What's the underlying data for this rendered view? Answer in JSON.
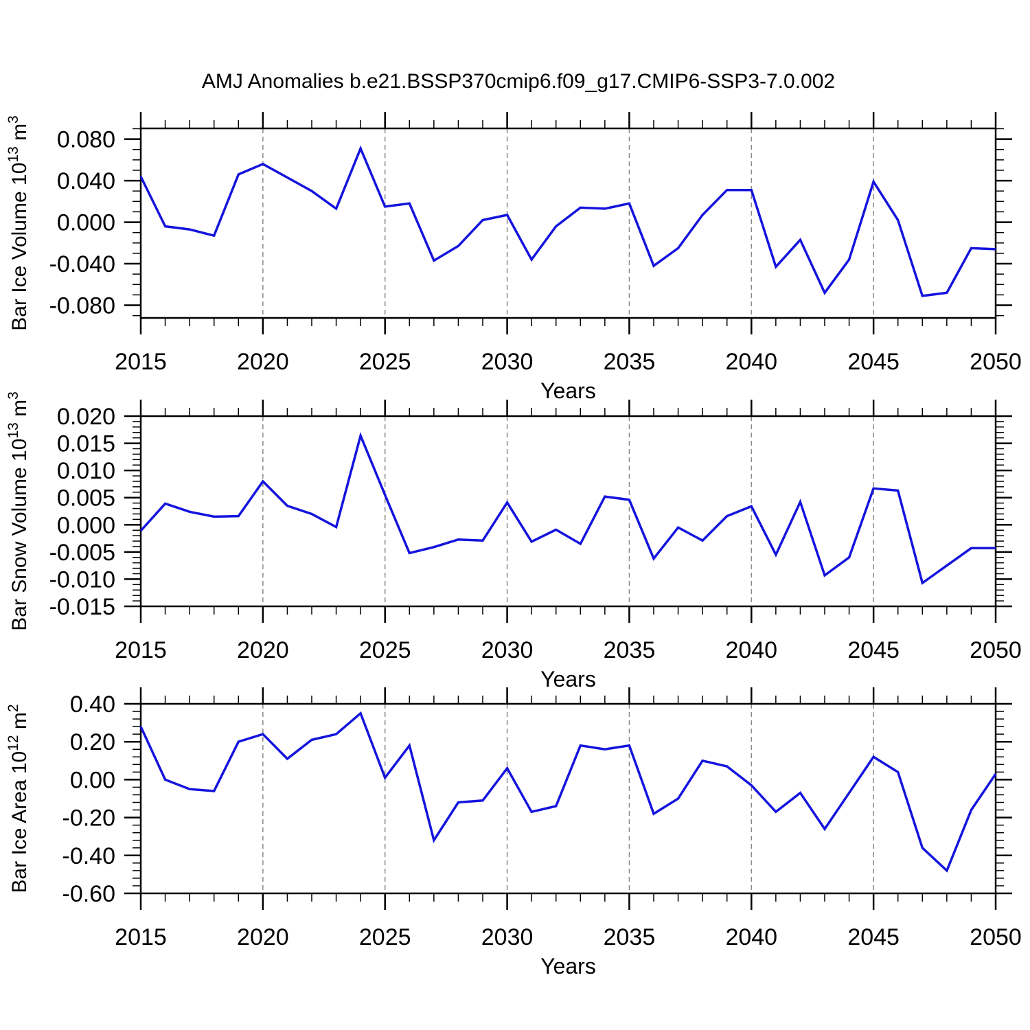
{
  "title": "AMJ Anomalies b.e21.BSSP370cmip6.f09_g17.CMIP6-SSP3-7.0.002",
  "line_color": "#1414dd",
  "grid_color": "#8a8a8a",
  "axis_color": "#000000",
  "chart_data": [
    {
      "type": "line",
      "name": "bar-ice-volume",
      "ylabel": "Bar Ice Volume 10^13 m^3",
      "ylabel_parts": [
        {
          "t": "Bar Ice Volume 10"
        },
        {
          "t": "13",
          "sup": true
        },
        {
          "t": " m"
        },
        {
          "t": "3",
          "sup": true
        }
      ],
      "xlabel": "Years",
      "x": [
        2015,
        2016,
        2017,
        2018,
        2019,
        2020,
        2021,
        2022,
        2023,
        2024,
        2025,
        2026,
        2027,
        2028,
        2029,
        2030,
        2031,
        2032,
        2033,
        2034,
        2035,
        2036,
        2037,
        2038,
        2039,
        2040,
        2041,
        2042,
        2043,
        2044,
        2045,
        2046,
        2047,
        2048,
        2049,
        2050
      ],
      "values": [
        0.044,
        -0.004,
        -0.007,
        -0.013,
        0.046,
        0.056,
        0.043,
        0.03,
        0.013,
        0.071,
        0.015,
        0.018,
        -0.037,
        -0.023,
        0.002,
        0.007,
        -0.036,
        -0.004,
        0.014,
        0.013,
        0.018,
        -0.042,
        -0.025,
        0.007,
        0.031,
        0.031,
        -0.043,
        -0.017,
        -0.068,
        -0.036,
        0.039,
        0.002,
        -0.071,
        -0.068,
        -0.025,
        -0.026
      ],
      "ylim": [
        -0.0922,
        0.0903
      ],
      "ytick_values": [
        0.08,
        0.04,
        0.0,
        -0.04,
        -0.08
      ],
      "ytick_labels": [
        "0.080",
        "0.040",
        "0.000",
        "-0.040",
        "-0.080"
      ],
      "y_minor_step": 0.01,
      "xtick_values": [
        2015,
        2020,
        2025,
        2030,
        2035,
        2040,
        2045,
        2050
      ],
      "xtick_labels": [
        "2015",
        "2020",
        "2025",
        "2030",
        "2035",
        "2040",
        "2045",
        "2050"
      ],
      "x_minor_step": 1,
      "grid_x": [
        2020,
        2025,
        2030,
        2035,
        2040,
        2045
      ],
      "xlim": [
        2015,
        2050
      ]
    },
    {
      "type": "line",
      "name": "bar-snow-volume",
      "ylabel": "Bar Snow Volume 10^13 m^3",
      "ylabel_parts": [
        {
          "t": "Bar Snow Volume 10"
        },
        {
          "t": "13",
          "sup": true
        },
        {
          "t": " m"
        },
        {
          "t": "3",
          "sup": true
        }
      ],
      "xlabel": "Years",
      "x": [
        2015,
        2016,
        2017,
        2018,
        2019,
        2020,
        2021,
        2022,
        2023,
        2024,
        2025,
        2026,
        2027,
        2028,
        2029,
        2030,
        2031,
        2032,
        2033,
        2034,
        2035,
        2036,
        2037,
        2038,
        2039,
        2040,
        2041,
        2042,
        2043,
        2044,
        2045,
        2046,
        2047,
        2048,
        2049,
        2050
      ],
      "values": [
        -0.0011,
        0.0039,
        0.0024,
        0.0015,
        0.0016,
        0.008,
        0.0035,
        0.002,
        -0.0004,
        0.0164,
        0.0055,
        -0.0052,
        -0.0041,
        -0.0027,
        -0.0029,
        0.0041,
        -0.0031,
        -0.0009,
        -0.0035,
        0.0052,
        0.0046,
        -0.0062,
        -0.0005,
        -0.0029,
        0.0016,
        0.0034,
        -0.0055,
        0.0042,
        -0.0093,
        -0.006,
        0.0067,
        0.0063,
        -0.0107,
        -0.0075,
        -0.0043,
        -0.0043
      ],
      "ylim": [
        -0.015,
        0.02
      ],
      "ytick_values": [
        0.02,
        0.015,
        0.01,
        0.005,
        0.0,
        -0.005,
        -0.01,
        -0.015
      ],
      "ytick_labels": [
        "0.020",
        "0.015",
        "0.010",
        "0.005",
        "0.000",
        "-0.005",
        "-0.010",
        "-0.015"
      ],
      "y_minor_step": 0.001,
      "xtick_values": [
        2015,
        2020,
        2025,
        2030,
        2035,
        2040,
        2045,
        2050
      ],
      "xtick_labels": [
        "2015",
        "2020",
        "2025",
        "2030",
        "2035",
        "2040",
        "2045",
        "2050"
      ],
      "x_minor_step": 1,
      "grid_x": [
        2020,
        2025,
        2030,
        2035,
        2040,
        2045
      ],
      "xlim": [
        2015,
        2050
      ]
    },
    {
      "type": "line",
      "name": "bar-ice-area",
      "ylabel": "Bar Ice Area 10^12 m^2",
      "ylabel_parts": [
        {
          "t": "Bar Ice Area 10"
        },
        {
          "t": "12",
          "sup": true
        },
        {
          "t": " m"
        },
        {
          "t": "2",
          "sup": true
        }
      ],
      "xlabel": "Years",
      "x": [
        2015,
        2016,
        2017,
        2018,
        2019,
        2020,
        2021,
        2022,
        2023,
        2024,
        2025,
        2026,
        2027,
        2028,
        2029,
        2030,
        2031,
        2032,
        2033,
        2034,
        2035,
        2036,
        2037,
        2038,
        2039,
        2040,
        2041,
        2042,
        2043,
        2044,
        2045,
        2046,
        2047,
        2048,
        2049,
        2050
      ],
      "values": [
        0.28,
        0.0,
        -0.05,
        -0.06,
        0.2,
        0.24,
        0.11,
        0.21,
        0.24,
        0.35,
        0.01,
        0.18,
        -0.32,
        -0.12,
        -0.11,
        0.06,
        -0.17,
        -0.14,
        0.18,
        0.16,
        0.18,
        -0.18,
        -0.1,
        0.1,
        0.07,
        -0.03,
        -0.17,
        -0.07,
        -0.26,
        -0.07,
        0.12,
        0.04,
        -0.36,
        -0.48,
        -0.16,
        0.03
      ],
      "ylim": [
        -0.6,
        0.4
      ],
      "ytick_values": [
        0.4,
        0.2,
        0.0,
        -0.2,
        -0.4,
        -0.6
      ],
      "ytick_labels": [
        "0.40",
        "0.20",
        "0.00",
        "-0.20",
        "-0.40",
        "-0.60"
      ],
      "y_minor_step": 0.04,
      "xtick_values": [
        2015,
        2020,
        2025,
        2030,
        2035,
        2040,
        2045,
        2050
      ],
      "xtick_labels": [
        "2015",
        "2020",
        "2025",
        "2030",
        "2035",
        "2040",
        "2045",
        "2050"
      ],
      "x_minor_step": 1,
      "grid_x": [
        2020,
        2025,
        2030,
        2035,
        2040,
        2045
      ],
      "xlim": [
        2015,
        2050
      ]
    }
  ]
}
